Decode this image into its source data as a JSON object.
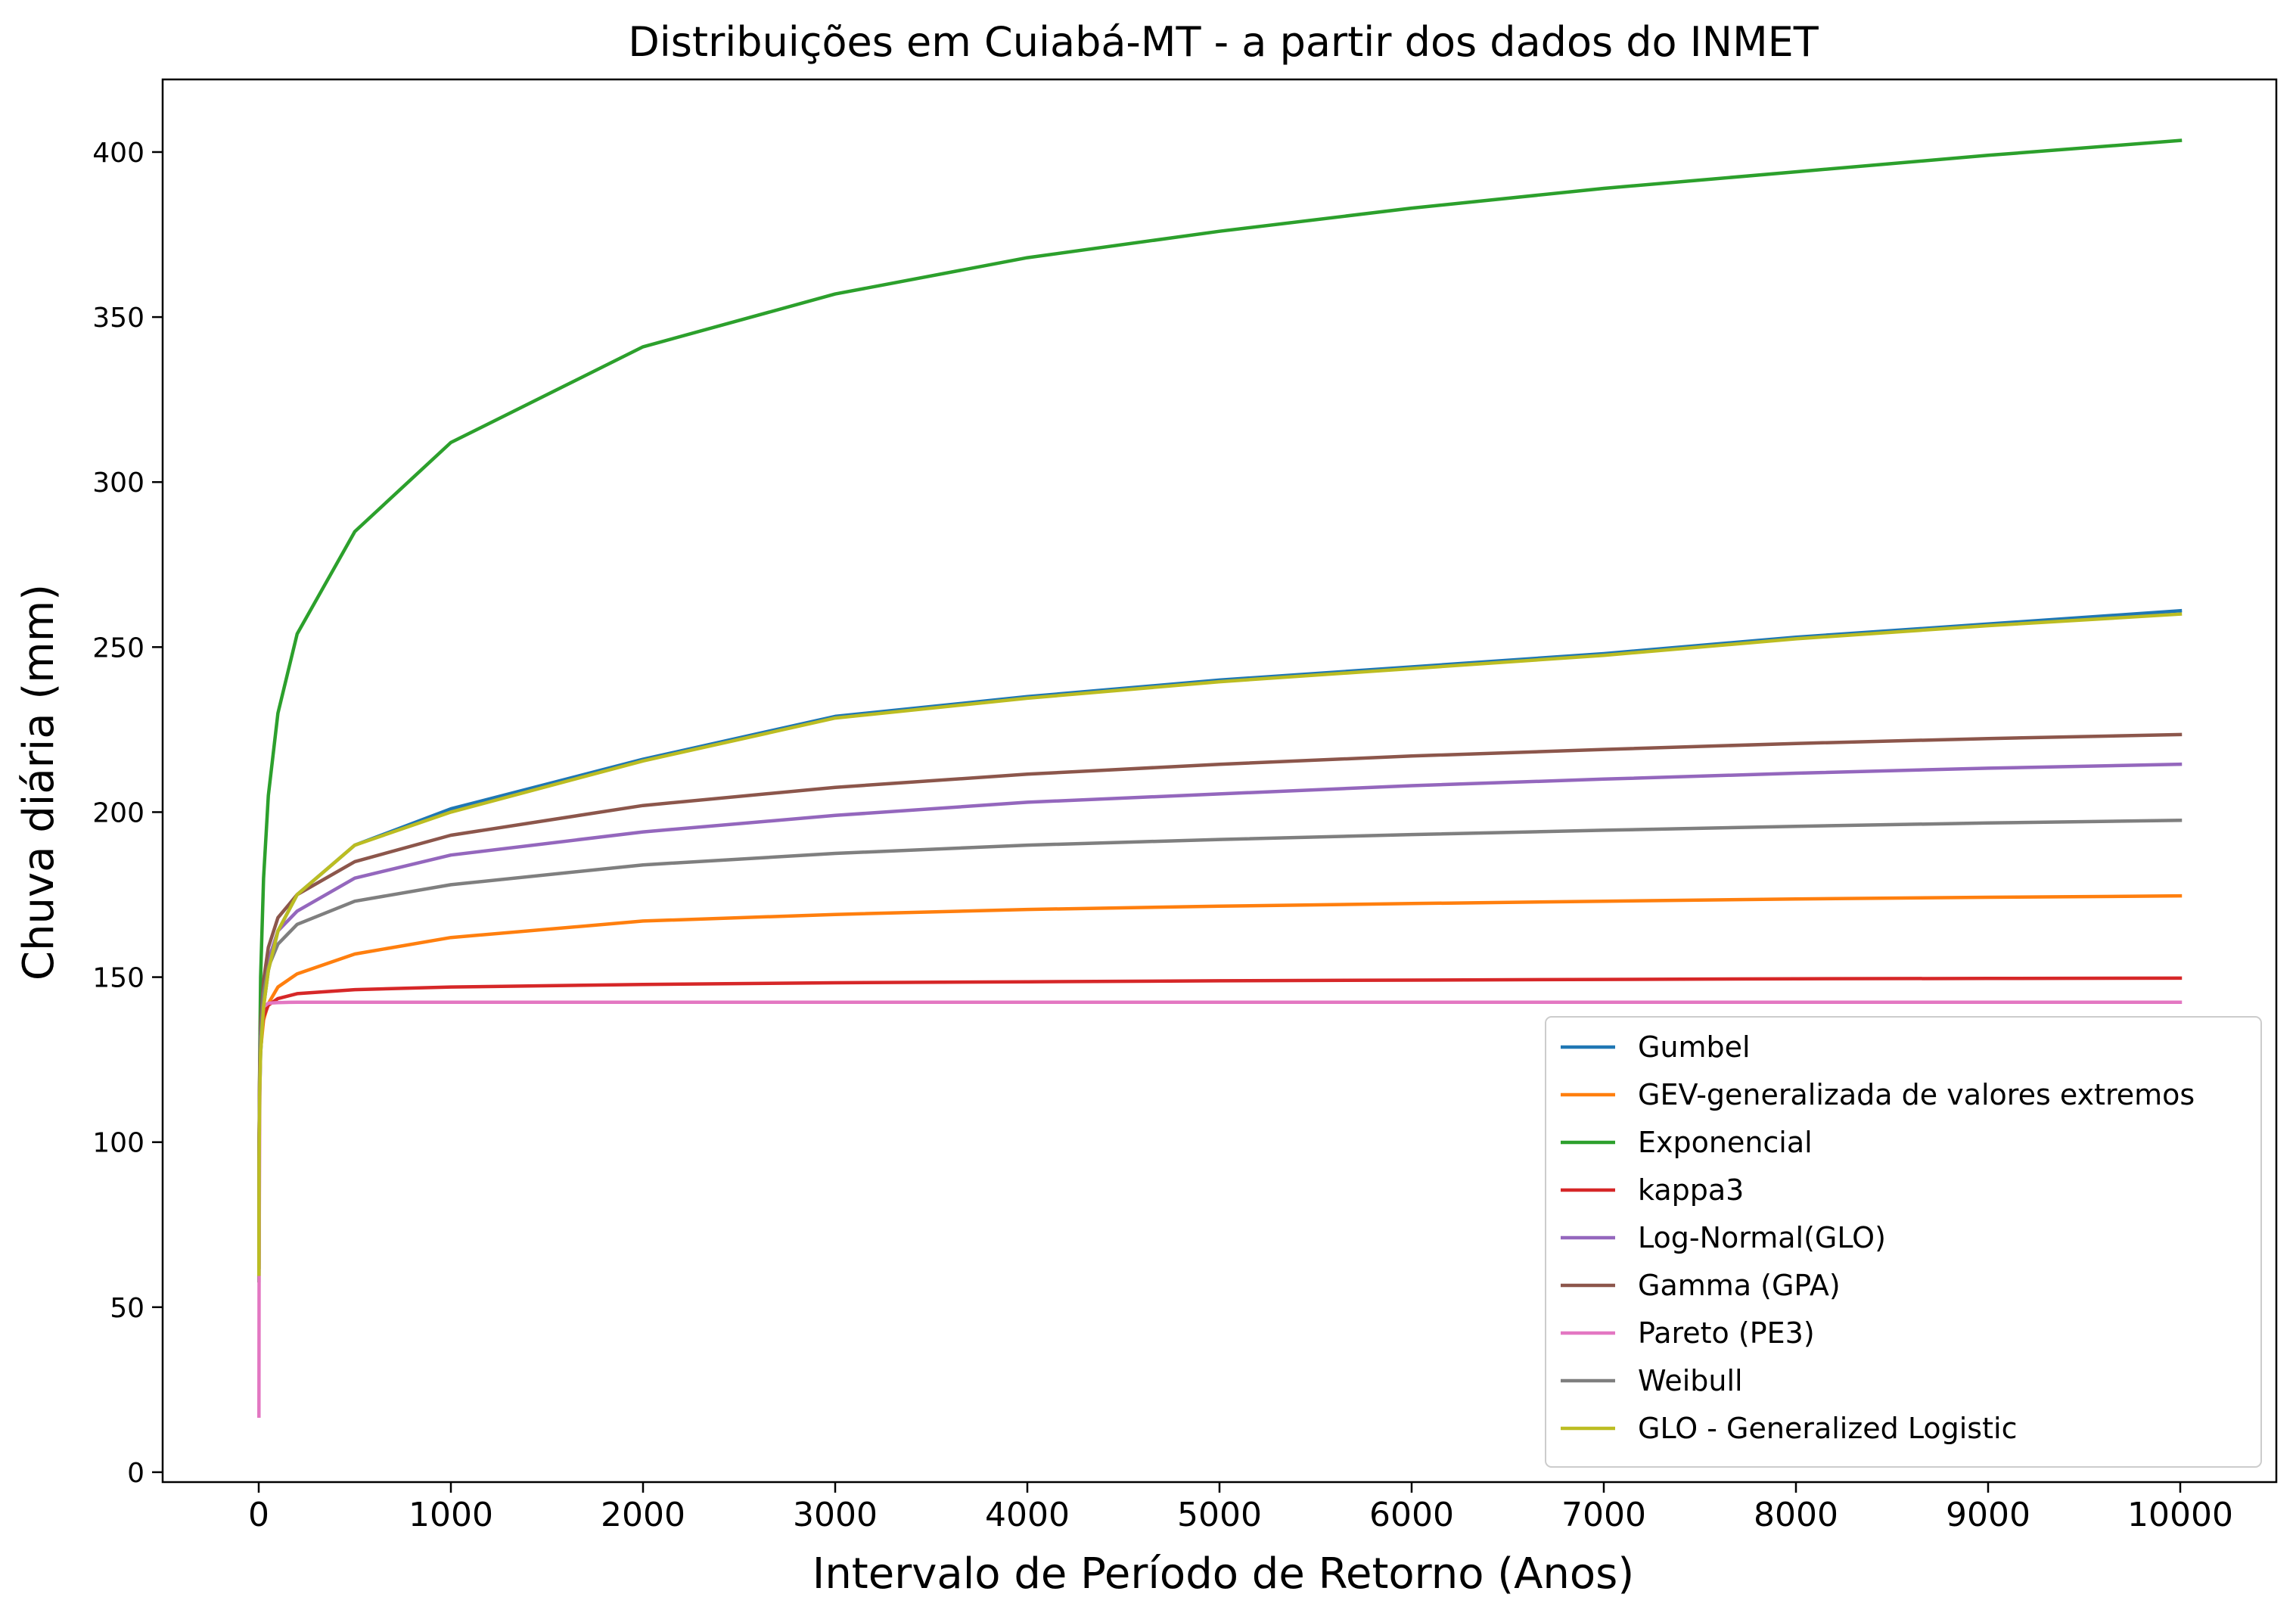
{
  "chart_data": {
    "type": "line",
    "title": "Distribuições em Cuiabá-MT - a partir dos dados do INMET",
    "xlabel": "Intervalo de Período de Retorno (Anos)",
    "ylabel": "Chuva diária (mm)",
    "xlim": [
      -500,
      10500
    ],
    "ylim": [
      -3,
      422
    ],
    "xticks": [
      0,
      1000,
      2000,
      3000,
      4000,
      5000,
      6000,
      7000,
      8000,
      9000,
      10000
    ],
    "xtick_labels": [
      "0",
      "1000",
      "2000",
      "3000",
      "4000",
      "5000",
      "6000",
      "7000",
      "8000",
      "9000",
      "10000"
    ],
    "yticks": [
      0,
      50,
      100,
      150,
      200,
      250,
      300,
      350,
      400
    ],
    "ytick_labels": [
      "0",
      "50",
      "100",
      "150",
      "200",
      "250",
      "300",
      "350",
      "400"
    ],
    "grid": false,
    "legend_position": "lower-right",
    "x": [
      1.01,
      2,
      5,
      10,
      25,
      50,
      100,
      200,
      500,
      1000,
      2000,
      3000,
      4000,
      5000,
      6000,
      7000,
      8000,
      9000,
      10000
    ],
    "series": [
      {
        "name": "Gumbel",
        "color": "#1f77b4",
        "values": [
          60,
          95,
          115,
          127,
          141,
          152,
          164,
          175,
          190,
          201,
          216,
          229,
          235,
          240,
          244,
          248,
          253,
          257,
          261
        ]
      },
      {
        "name": "GEV-generalizada de valores extremos",
        "color": "#ff7f0e",
        "values": [
          62,
          98,
          118,
          128,
          137,
          142,
          147,
          151,
          157,
          162,
          167,
          169,
          170.5,
          171.5,
          172.3,
          173,
          173.7,
          174.2,
          174.6
        ]
      },
      {
        "name": "Exponencial",
        "color": "#2ca02c",
        "values": [
          58,
          95,
          125,
          150,
          180,
          205,
          230,
          254,
          285,
          312,
          341,
          357,
          368,
          376,
          383,
          389,
          394,
          399,
          403.5
        ]
      },
      {
        "name": "kappa3",
        "color": "#d62728",
        "values": [
          62,
          100,
          122,
          131,
          138,
          141.5,
          143.5,
          145,
          146.2,
          147,
          147.8,
          148.3,
          148.6,
          148.9,
          149.1,
          149.3,
          149.5,
          149.6,
          149.7
        ]
      },
      {
        "name": "Log-Normal(GLO)",
        "color": "#9467bd",
        "values": [
          62,
          100,
          121,
          133,
          146,
          155,
          164,
          170,
          180,
          187,
          194,
          199,
          203,
          205.5,
          208,
          210,
          211.8,
          213.3,
          214.5
        ]
      },
      {
        "name": "Gamma (GPA)",
        "color": "#8c564b",
        "values": [
          62,
          101,
          123,
          136,
          149,
          159,
          168,
          175,
          185,
          193,
          202,
          207.5,
          211.5,
          214.5,
          217,
          219,
          220.8,
          222.3,
          223.5
        ]
      },
      {
        "name": "Pareto (PE3)",
        "color": "#e377c2",
        "values": [
          17,
          62,
          110,
          132,
          141,
          142.1,
          142.3,
          142.4,
          142.4,
          142.4,
          142.4,
          142.4,
          142.4,
          142.4,
          142.4,
          142.4,
          142.4,
          142.4,
          142.4
        ]
      },
      {
        "name": "Weibull",
        "color": "#7f7f7f",
        "values": [
          62,
          100,
          120,
          132,
          145,
          153,
          160,
          166,
          173,
          178,
          184,
          187.5,
          190,
          191.7,
          193.2,
          194.5,
          195.7,
          196.7,
          197.5
        ]
      },
      {
        "name": "GLO - Generalized Logistic",
        "color": "#bcbd22",
        "values": [
          60,
          95,
          115,
          127,
          141,
          152,
          164,
          175,
          190,
          200,
          215.5,
          228.5,
          234.5,
          239.5,
          243.5,
          247.5,
          252.5,
          256.5,
          260
        ]
      }
    ]
  }
}
